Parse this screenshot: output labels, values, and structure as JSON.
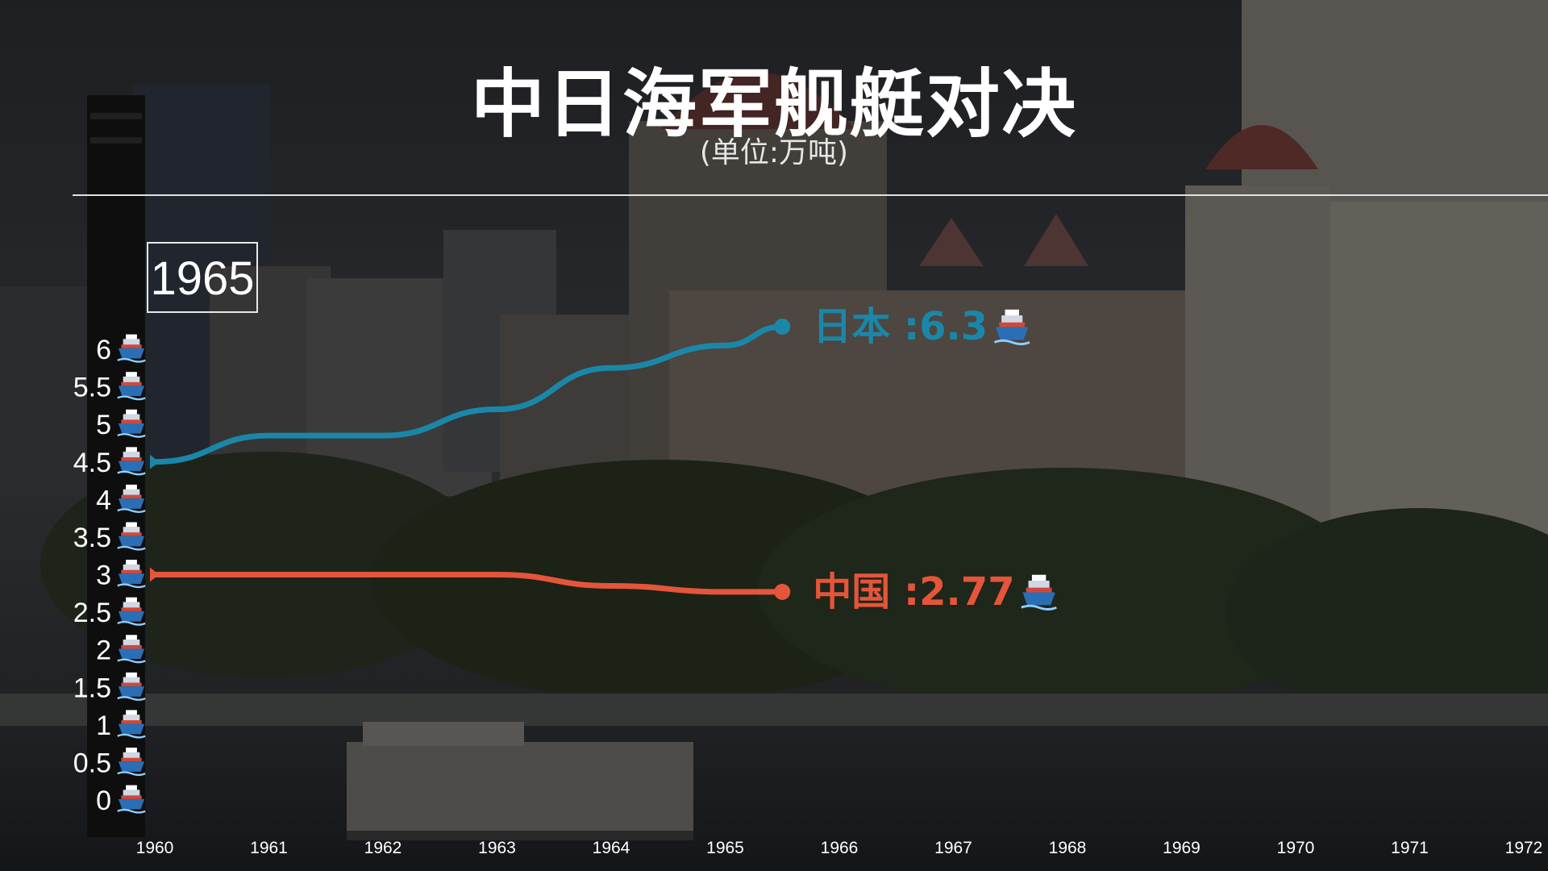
{
  "title": "中日海军舰艇对决",
  "subtitle": "(单位:万吨)",
  "current_year": "1965",
  "colors": {
    "japan": "#1b87a8",
    "china": "#e5553a",
    "text": "#ffffff",
    "rule": "#e0e0e0"
  },
  "icons": {
    "tick_icon": "ship-icon",
    "label_icon": "ship-icon"
  },
  "chart_data": {
    "type": "line",
    "title": "中日海军舰艇对决",
    "subtitle": "(单位:万吨)",
    "xlabel": "",
    "ylabel": "",
    "x_ticks": [
      "1960",
      "1961",
      "1962",
      "1963",
      "1964",
      "1965",
      "1966",
      "1967",
      "1968",
      "1969",
      "1970",
      "1971",
      "1972"
    ],
    "xlim": [
      1960,
      1972
    ],
    "y_ticks": [
      "0",
      "0.5",
      "1",
      "1.5",
      "2",
      "2.5",
      "3",
      "3.5",
      "4",
      "4.5",
      "5",
      "5.5",
      "6"
    ],
    "ylim": [
      0,
      6
    ],
    "grid": false,
    "legend": "end-of-line labels",
    "series": [
      {
        "name": "日本",
        "end_label": "日本 :6.3",
        "x": [
          1960,
          1961,
          1962,
          1963,
          1964,
          1965,
          1965.5
        ],
        "y": [
          4.5,
          4.85,
          4.85,
          5.2,
          5.75,
          6.05,
          6.3
        ]
      },
      {
        "name": "中国",
        "end_label": "中国 :2.77",
        "x": [
          1960,
          1961,
          1962,
          1963,
          1964,
          1965,
          1965.5
        ],
        "y": [
          3.0,
          3.0,
          3.0,
          3.0,
          2.85,
          2.77,
          2.77
        ]
      }
    ]
  }
}
